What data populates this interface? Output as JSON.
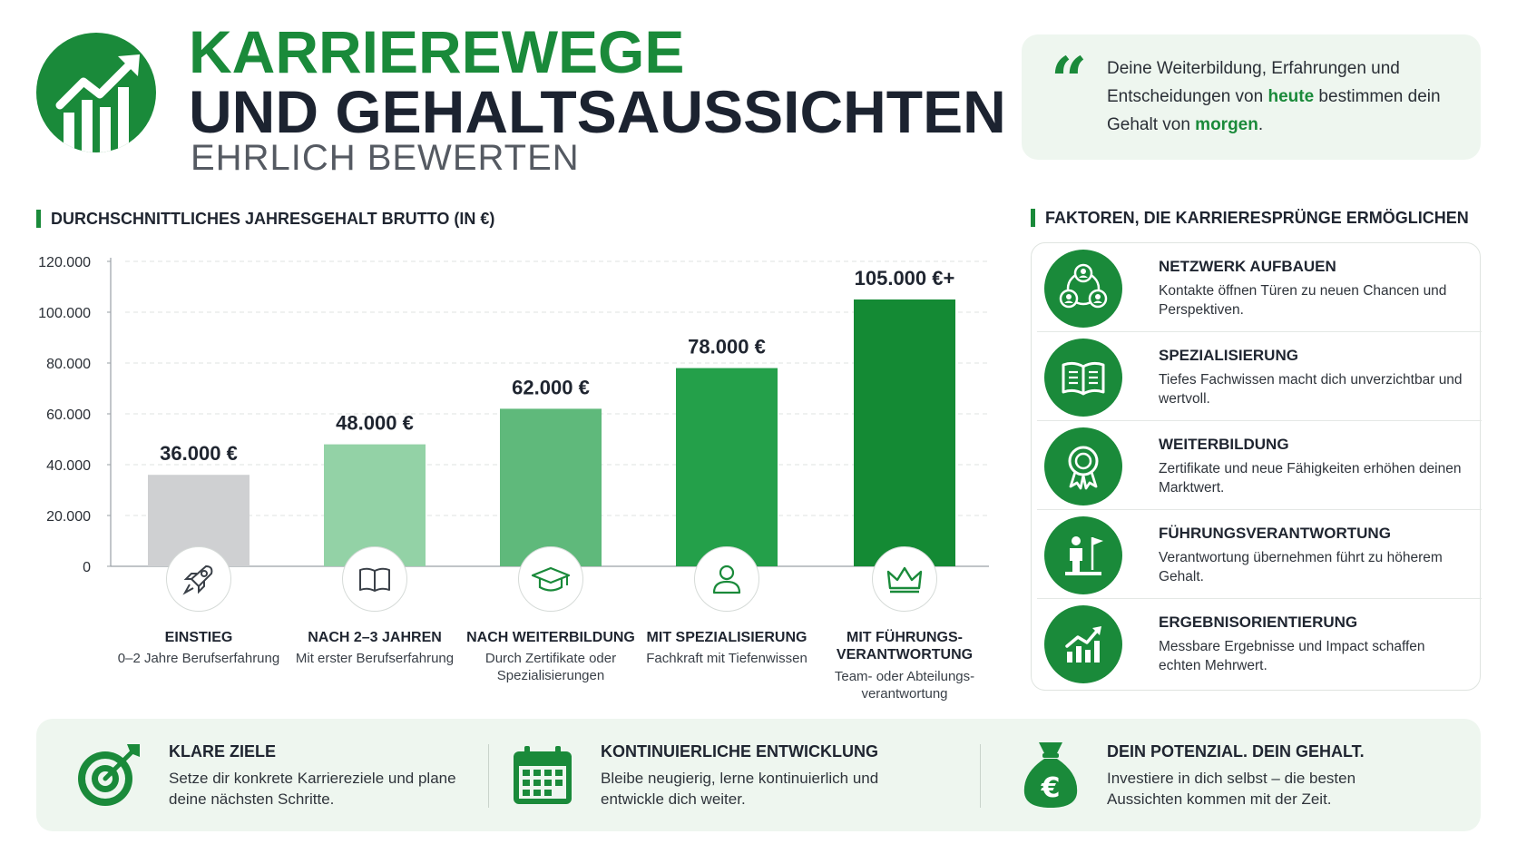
{
  "header": {
    "title_line1": "KARRIEREWEGE",
    "title_line2": "UND GEHALTSAUSSICHTEN",
    "title_line3": "EHRLICH BEWERTEN",
    "logo_icon": "growth-chart-icon"
  },
  "quote": {
    "mark": "“",
    "part1": "Deine Weiterbildung, Erfahrungen und Entscheidungen von ",
    "highlight1": "heute",
    "part2": " bestimmen dein Gehalt von ",
    "highlight2": "morgen",
    "part3": "."
  },
  "chart_section": {
    "heading": "DURCHSCHNITTLICHES JAHRESGEHALT BRUTTO (IN €)"
  },
  "chart_data": {
    "type": "bar",
    "title": "DURCHSCHNITTLICHES JAHRESGEHALT BRUTTO (IN €)",
    "categories": [
      "EINSTIEG",
      "NACH 2–3 JAHREN",
      "NACH WEITERBILDUNG",
      "MIT SPEZIALISIERUNG",
      "MIT FÜHRUNGS-VERANTWORTUNG"
    ],
    "category_sublabels": [
      "0–2 Jahre Berufserfahrung",
      "Mit erster Berufserfahrung",
      "Durch Zertifikate oder Spezialisierungen",
      "Fachkraft mit Tiefenwissen",
      "Team- oder Abteilungs-verantwortung"
    ],
    "values": [
      36000,
      48000,
      62000,
      78000,
      105000
    ],
    "value_labels": [
      "36.000 €",
      "48.000 €",
      "62.000 €",
      "78.000 €",
      "105.000 €+"
    ],
    "bar_colors": [
      "#cfd0d2",
      "#93d2a6",
      "#5fb97b",
      "#24a04a",
      "#148a34"
    ],
    "category_icons": [
      "rocket-icon",
      "book-icon",
      "graduation-cap-icon",
      "person-icon",
      "crown-icon"
    ],
    "yticks": [
      0,
      20000,
      40000,
      60000,
      80000,
      100000,
      120000
    ],
    "ytick_labels": [
      "0",
      "20.000",
      "40.000",
      "60.000",
      "80.000",
      "100.000",
      "120.000"
    ],
    "ylim": [
      0,
      120000
    ],
    "xlabel": "",
    "ylabel": "",
    "grid": true
  },
  "factors": {
    "heading": "FAKTOREN, DIE KARRIERESPRÜNGE ERMÖGLICHEN",
    "items": [
      {
        "icon": "network-icon",
        "title": "NETZWERK AUFBAUEN",
        "text": "Kontakte öffnen Türen zu neuen Chancen und Perspektiven."
      },
      {
        "icon": "book-icon",
        "title": "SPEZIALISIERUNG",
        "text": "Tiefes Fachwissen macht dich unverzichtbar und wertvoll."
      },
      {
        "icon": "award-icon",
        "title": "WEITERBILDUNG",
        "text": "Zertifikate und neue Fähigkeiten erhöhen deinen Marktwert."
      },
      {
        "icon": "leader-flag-icon",
        "title": "FÜHRUNGSVERANTWORTUNG",
        "text": "Verantwortung übernehmen führt zu höherem Gehalt."
      },
      {
        "icon": "growth-chart-icon",
        "title": "ERGEBNISORIENTIERUNG",
        "text": "Messbare Ergebnisse und Impact schaffen echten Mehrwert."
      }
    ]
  },
  "bottom": {
    "items": [
      {
        "icon": "target-icon",
        "title": "KLARE ZIELE",
        "text": "Setze dir konkrete Karriereziele und plane deine nächsten Schritte."
      },
      {
        "icon": "calendar-icon",
        "title": "KONTINUIERLICHE ENTWICKLUNG",
        "text": "Bleibe neugierig, lerne kontinuierlich und entwickle dich weiter."
      },
      {
        "icon": "money-bag-icon",
        "title": "DEIN POTENZIAL. DEIN GEHALT.",
        "text": "Investiere in dich selbst – die besten Aussichten kommen mit der Zeit."
      }
    ]
  },
  "colors": {
    "accent": "#1a8a3a",
    "dark_text": "#1f2530",
    "soft_background": "#eef6ef"
  }
}
